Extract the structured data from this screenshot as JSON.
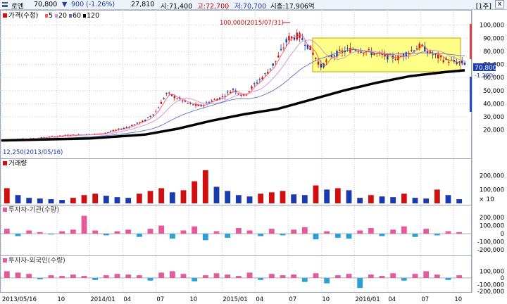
{
  "header": {
    "stock_name": "로엔",
    "price": "70,800",
    "change_arrow": "▼",
    "change": "900",
    "change_pct": "(-1.26%)",
    "volume": "27,810",
    "open_label": "시:71,400",
    "high_label": "고:72,700",
    "low_label": "저:70,700",
    "mktcap_label": "시총:17,906억",
    "period_button": "[1주]",
    "close_button": "x"
  },
  "chart_data": [
    {
      "type": "candlestick",
      "title": "가격(수정)",
      "legend": [
        {
          "name": "5",
          "color": "#ff5a5a"
        },
        {
          "name": "20",
          "color": "#d48cd6"
        },
        {
          "name": "60",
          "color": "#5b74c8"
        },
        {
          "name": "120",
          "color": "#000000"
        }
      ],
      "ylim": [
        0,
        110000
      ],
      "yticks": [
        "20,000",
        "30,000",
        "40,000",
        "50,000",
        "60,000",
        "70,000",
        "80,000",
        "90,000",
        "100,000"
      ],
      "current_price_tag": "70,800",
      "current_change_tag": "-1.26%",
      "annotations": {
        "max": "100,000(2015/07/31)",
        "min": "12,250(2013/05/16)"
      },
      "price_path": [
        [
          "2013-05",
          12500
        ],
        [
          "2013-08",
          13500
        ],
        [
          "2013-11",
          16000
        ],
        [
          "2014-02",
          17000
        ],
        [
          "2014-04",
          21000
        ],
        [
          "2014-06",
          27000
        ],
        [
          "2014-07",
          34000
        ],
        [
          "2014-08",
          48000
        ],
        [
          "2014-09",
          44000
        ],
        [
          "2014-10",
          40000
        ],
        [
          "2014-11",
          38000
        ],
        [
          "2014-12",
          42000
        ],
        [
          "2015-01",
          45000
        ],
        [
          "2015-02",
          51000
        ],
        [
          "2015-03",
          46000
        ],
        [
          "2015-04",
          55000
        ],
        [
          "2015-05",
          63000
        ],
        [
          "2015-06",
          74000
        ],
        [
          "2015-07",
          90000
        ],
        [
          "2015-08",
          92000
        ],
        [
          "2015-09",
          82000
        ],
        [
          "2015-10",
          68000
        ],
        [
          "2015-11",
          77000
        ],
        [
          "2015-12",
          80000
        ],
        [
          "2016-01",
          82000
        ],
        [
          "2016-02",
          80000
        ],
        [
          "2016-03",
          78000
        ],
        [
          "2016-04",
          76000
        ],
        [
          "2016-05",
          75000
        ],
        [
          "2016-06",
          80000
        ],
        [
          "2016-07",
          84000
        ],
        [
          "2016-08",
          78000
        ],
        [
          "2016-09",
          74000
        ],
        [
          "2016-10",
          72000
        ],
        [
          "2016-11",
          70800
        ]
      ],
      "ma120_path": [
        [
          "2013-05",
          12000
        ],
        [
          "2014-01",
          13500
        ],
        [
          "2014-06",
          16500
        ],
        [
          "2014-09",
          21000
        ],
        [
          "2014-12",
          27000
        ],
        [
          "2015-03",
          32000
        ],
        [
          "2015-06",
          36000
        ],
        [
          "2015-09",
          43000
        ],
        [
          "2015-12",
          50000
        ],
        [
          "2016-03",
          56000
        ],
        [
          "2016-06",
          61000
        ],
        [
          "2016-09",
          64000
        ],
        [
          "2016-11",
          65500
        ]
      ]
    },
    {
      "type": "bar",
      "title": "거래량",
      "ylim": [
        0,
        270000
      ],
      "yticks": [
        "100,000",
        "200,000"
      ],
      "multiplier_label": "× 10",
      "values": [
        110000,
        60000,
        40000,
        35000,
        30000,
        25000,
        40000,
        60000,
        70000,
        55000,
        45000,
        40000,
        70000,
        90000,
        110000,
        80000,
        95000,
        160000,
        240000,
        120000,
        90000,
        60000,
        50000,
        70000,
        80000,
        90000,
        65000,
        60000,
        130000,
        100000,
        110000,
        95000,
        40000,
        60000,
        50000,
        45000,
        70000,
        40000,
        35000,
        100000,
        60000,
        30000
      ]
    },
    {
      "type": "bar",
      "title": "투자자-기관(수량)",
      "ylim": [
        -250000,
        260000
      ],
      "yticks": [
        "-200,000",
        "-100,000",
        "0",
        "100,000",
        "200,000"
      ],
      "values": [
        60000,
        -30000,
        40000,
        20000,
        -10000,
        30000,
        50000,
        220000,
        40000,
        -20000,
        30000,
        50000,
        -40000,
        60000,
        100000,
        -60000,
        40000,
        90000,
        -80000,
        30000,
        -50000,
        70000,
        40000,
        -30000,
        60000,
        -20000,
        50000,
        80000,
        -70000,
        30000,
        -50000,
        -60000,
        40000,
        70000,
        -30000,
        50000,
        90000,
        -40000,
        60000,
        -20000,
        30000,
        20000
      ]
    },
    {
      "type": "bar",
      "title": "투자자-외국인(수량)",
      "ylim": [
        -200000,
        220000
      ],
      "yticks": [
        "-200,000",
        "-100,000",
        "0",
        "100,000"
      ],
      "values": [
        100000,
        80000,
        60000,
        -20000,
        40000,
        30000,
        50000,
        30000,
        -30000,
        40000,
        60000,
        50000,
        40000,
        -40000,
        80000,
        100000,
        60000,
        -50000,
        40000,
        70000,
        50000,
        30000,
        80000,
        -30000,
        60000,
        40000,
        50000,
        -60000,
        70000,
        -80000,
        40000,
        60000,
        -150000,
        50000,
        30000,
        70000,
        -40000,
        60000,
        100000,
        50000,
        -30000,
        40000
      ]
    },
    {
      "type": "axis",
      "x_ticks": [
        "2013/05/16",
        "10",
        "2014/01",
        "04",
        "07",
        "10",
        "2015/01",
        "04",
        "07",
        "10",
        "2016/01",
        "04",
        "07",
        "10"
      ]
    }
  ],
  "colors": {
    "up": "#d01010",
    "down": "#1a3ab0",
    "ma5": "#ff5a5a",
    "ma20": "#d48cd6",
    "ma60": "#5b74c8",
    "ma120": "#000000",
    "institution_up": "#e55a9a",
    "foreign_up": "#e55a9a",
    "investor_down": "#2a9fd8",
    "highlight_box": "#ffff88",
    "price_tag_bg": "#1a3ab0"
  }
}
